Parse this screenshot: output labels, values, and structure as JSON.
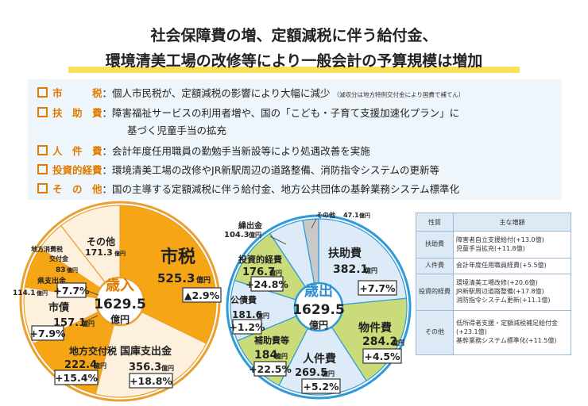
{
  "title": {
    "line1": "社会保障費の増、定額減税に伴う給付金、",
    "line2": "環境清美工場の改修等により一般会計の予算規模は増加"
  },
  "summary": {
    "items": [
      {
        "label": "市　　　税",
        "text": "：個人市民税が、定額減税の影響により大幅に減少",
        "note": "（減収分は地方特例交付金により国費で補てん）"
      },
      {
        "label": "扶　助　費",
        "text": "：障害福祉サービスの利用者増や、国の「こども・子育て支援加速化プラン」に",
        "cont": "基づく児童手当の拡充"
      },
      {
        "label": "人　件　費",
        "text": "：会計年度任用職員の勤勉手当新設等により処遇改善を実施"
      },
      {
        "label": "投資的経費",
        "text": "：環境清美工場の改修やJR新駅周辺の道路整備、消防指令システムの更新等"
      },
      {
        "label": "そ　の　他",
        "text": "：国の主導する定額減税に伴う給付金、地方公共団体の基幹業務システム標準化"
      }
    ]
  },
  "chart_data": [
    {
      "type": "pie",
      "center_label": "歳入",
      "total": "1629.5",
      "unit": "億円",
      "categories": [
        "市税",
        "国庫支出金",
        "地方交付税",
        "市債",
        "県支出金",
        "地方消費税交付金",
        "その他"
      ],
      "values": [
        525.3,
        356.3,
        222.4,
        157.1,
        114.1,
        83,
        171.3
      ],
      "changes": [
        "▲2.9%",
        "+18.8%",
        "+15.4%",
        "+7.9%",
        "+7.7%",
        "",
        ""
      ],
      "colors": {
        "main": "#f6a515",
        "light": "#fdf0dc",
        "rim": "#e8a030"
      }
    },
    {
      "type": "pie",
      "center_label": "歳出",
      "total": "1629.5",
      "unit": "億円",
      "categories": [
        "扶助費",
        "物件費",
        "人件費",
        "補助費等",
        "公債費",
        "投資的経費",
        "繰出金",
        "その他"
      ],
      "values": [
        382.1,
        284.2,
        269.5,
        184,
        181.6,
        176.7,
        104.3,
        47.1
      ],
      "changes": [
        "+7.7%",
        "+4.5%",
        "+5.2%",
        "+22.5%",
        "+1.2%",
        "+24.8%",
        "",
        ""
      ],
      "colors": {
        "main": "#c9dc79",
        "light": "#dcebf7",
        "rim": "#2f9ad8"
      }
    }
  ],
  "table": {
    "headers": [
      "性質",
      "主な増額"
    ],
    "rows": [
      {
        "cat": "扶助費",
        "lines": [
          "障害者自立支援給付(+13.0億)",
          "児童手当拡充(+11.8億)"
        ]
      },
      {
        "cat": "人件費",
        "lines": [
          "会計年度任用職員経費(+5.5億)"
        ]
      },
      {
        "cat": "投資的経費",
        "lines": [
          "環境清美工場改修(+20.6億)",
          "JR新駅周辺道路整備(+17.8億)",
          "消防指令システム更新(+11.1億)"
        ]
      },
      {
        "cat": "その他",
        "lines": [
          "低所得者支援・定額減税補足給付金(+23.1億)",
          "基幹業務システム標準化(+11.5億)"
        ]
      }
    ]
  }
}
